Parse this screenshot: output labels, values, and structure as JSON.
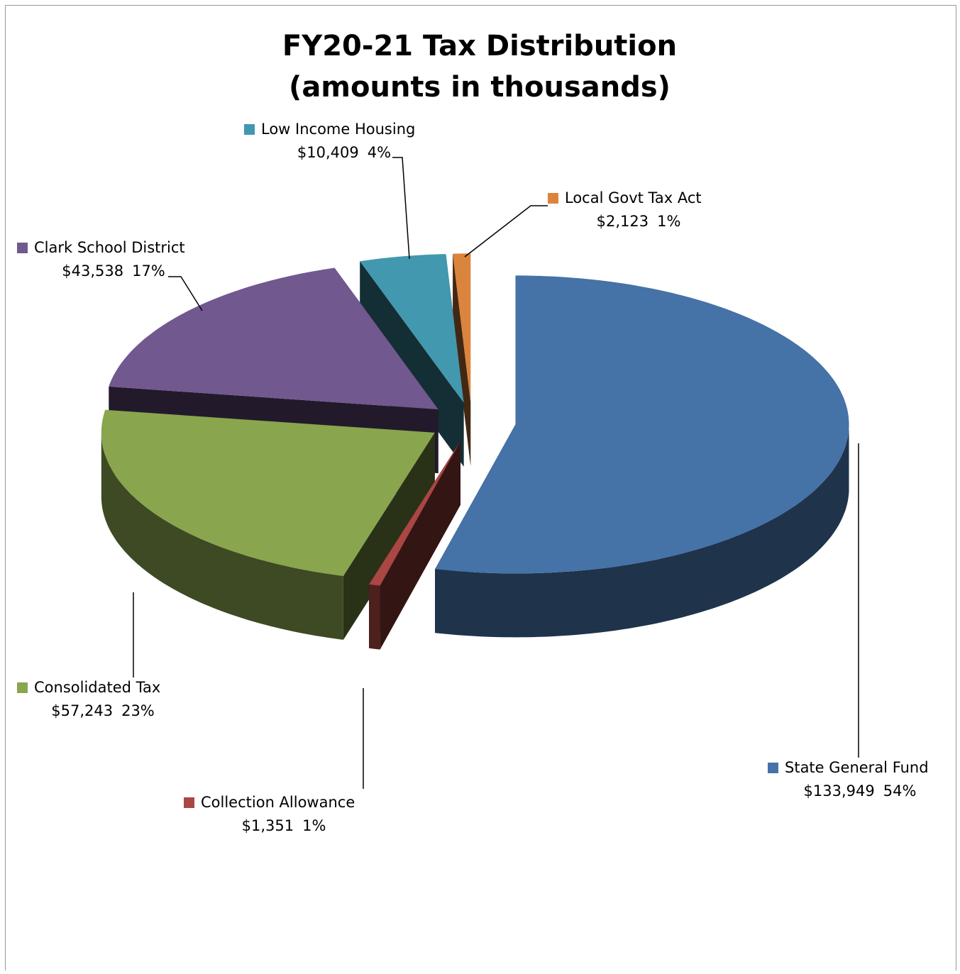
{
  "chart_data": {
    "type": "pie3d",
    "title": "FY20-21 Tax Distribution",
    "subtitle": "(amounts in thousands)",
    "categories": [
      "State General Fund",
      "Collection Allowance",
      "Consolidated Tax",
      "Clark School District",
      "Low Income Housing",
      "Local Govt Tax Act"
    ],
    "values": [
      133949,
      1351,
      57243,
      43538,
      10409,
      2123
    ],
    "value_labels": [
      "$133,949",
      "$1,351",
      "$57,243",
      "$43,538",
      "$10,409",
      "$2,123"
    ],
    "percent_labels": [
      "54%",
      "1%",
      "23%",
      "17%",
      "4%",
      "1%"
    ],
    "colors": [
      "#4572a7",
      "#aa4643",
      "#89a54e",
      "#71588f",
      "#4198af",
      "#db843d"
    ],
    "exploded": true
  }
}
